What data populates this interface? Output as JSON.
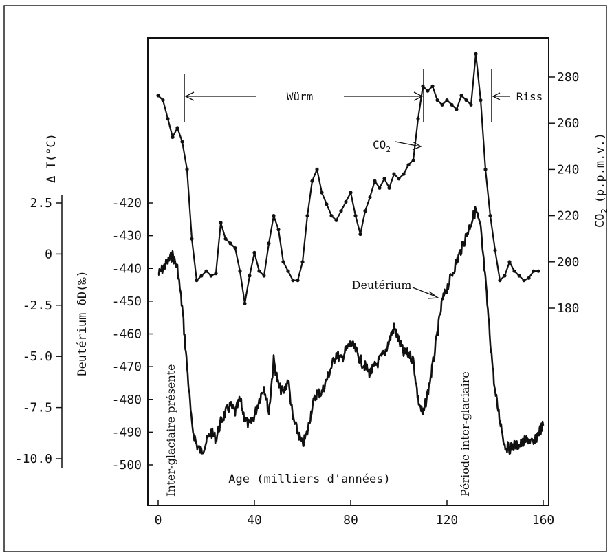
{
  "chart_data": {
    "type": "line",
    "title": "",
    "xlabel": "Age (milliers d'années)",
    "xlim": [
      0,
      160
    ],
    "x_ticks": [
      "0",
      "40",
      "80",
      "120",
      "160"
    ],
    "y_axes": {
      "co2": {
        "label": "CO",
        "label_sub": "2",
        "label_units": "(p.p.m.v.)",
        "side": "right",
        "range": [
          180,
          280
        ],
        "ticks": [
          "280",
          "260",
          "240",
          "220",
          "200",
          "180"
        ]
      },
      "deuterium": {
        "label": "Deutérium δD(‰)",
        "side": "left",
        "range": [
          -500,
          -420
        ],
        "ticks": [
          "-420",
          "-430",
          "-440",
          "-450",
          "-460",
          "-470",
          "-480",
          "-490",
          "-500"
        ]
      },
      "temperature": {
        "label": "Δ T(°C)",
        "side": "left-outer",
        "range": [
          -10.0,
          2.5
        ],
        "ticks": [
          "2.5",
          "0",
          "-2.5",
          "-5.0",
          "-7.5",
          "-10.0"
        ]
      }
    },
    "annotations": {
      "wurm": "Würm",
      "riss": "Riss",
      "co2_label": "CO",
      "co2_label_sub": "2",
      "deuterium_label": "Deutérium",
      "interglacial_present": "Inter-glaciaire présente",
      "interglacial_period": "Période inter-glaciaire"
    },
    "series": [
      {
        "name": "CO2",
        "axis": "co2",
        "x": [
          0,
          2,
          4,
          6,
          8,
          10,
          12,
          14,
          16,
          18,
          20,
          22,
          24,
          26,
          28,
          30,
          32,
          34,
          36,
          38,
          40,
          42,
          44,
          46,
          48,
          50,
          52,
          54,
          56,
          58,
          60,
          62,
          64,
          66,
          68,
          70,
          72,
          74,
          76,
          78,
          80,
          82,
          84,
          86,
          88,
          90,
          92,
          94,
          96,
          98,
          100,
          102,
          104,
          106,
          108,
          110,
          112,
          114,
          116,
          118,
          120,
          122,
          124,
          126,
          128,
          130,
          132,
          134,
          136,
          138,
          140,
          142,
          144,
          146,
          148,
          150,
          152,
          154,
          156,
          158
        ],
        "values": [
          272,
          270,
          262,
          254,
          258,
          252,
          240,
          210,
          192,
          194,
          196,
          194,
          195,
          217,
          210,
          208,
          206,
          196,
          182,
          194,
          204,
          196,
          194,
          208,
          220,
          214,
          200,
          196,
          192,
          192,
          200,
          220,
          235,
          240,
          230,
          225,
          220,
          218,
          222,
          226,
          230,
          220,
          212,
          222,
          228,
          235,
          232,
          236,
          232,
          238,
          236,
          238,
          242,
          244,
          262,
          276,
          274,
          276,
          270,
          268,
          270,
          268,
          266,
          272,
          270,
          268,
          290,
          270,
          240,
          220,
          205,
          192,
          194,
          200,
          196,
          194,
          192,
          193,
          196,
          196
        ]
      },
      {
        "name": "Deutérium",
        "axis": "deuterium",
        "x": [
          0,
          2,
          4,
          6,
          8,
          10,
          12,
          14,
          16,
          18,
          20,
          22,
          24,
          26,
          28,
          30,
          32,
          34,
          36,
          38,
          40,
          42,
          44,
          46,
          48,
          50,
          52,
          54,
          56,
          58,
          60,
          62,
          64,
          66,
          68,
          70,
          72,
          74,
          76,
          78,
          80,
          82,
          84,
          86,
          88,
          90,
          92,
          94,
          96,
          98,
          100,
          102,
          104,
          106,
          108,
          110,
          112,
          114,
          116,
          118,
          120,
          122,
          124,
          126,
          128,
          130,
          132,
          134,
          136,
          138,
          140,
          142,
          144,
          146,
          148,
          150,
          152,
          154,
          156,
          158,
          160
        ],
        "values": [
          -442,
          -440,
          -438,
          -436,
          -440,
          -452,
          -470,
          -488,
          -494,
          -496,
          -493,
          -490,
          -492,
          -487,
          -484,
          -482,
          -484,
          -480,
          -486,
          -488,
          -485,
          -480,
          -476,
          -484,
          -468,
          -476,
          -478,
          -474,
          -486,
          -490,
          -494,
          -490,
          -482,
          -478,
          -478,
          -474,
          -470,
          -466,
          -468,
          -465,
          -463,
          -465,
          -468,
          -470,
          -472,
          -470,
          -468,
          -466,
          -462,
          -458,
          -462,
          -466,
          -466,
          -468,
          -480,
          -485,
          -478,
          -470,
          -460,
          -450,
          -446,
          -442,
          -438,
          -434,
          -430,
          -426,
          -422,
          -428,
          -444,
          -462,
          -478,
          -486,
          -494,
          -495,
          -494,
          -494,
          -493,
          -492,
          -494,
          -490,
          -488
        ]
      }
    ]
  }
}
